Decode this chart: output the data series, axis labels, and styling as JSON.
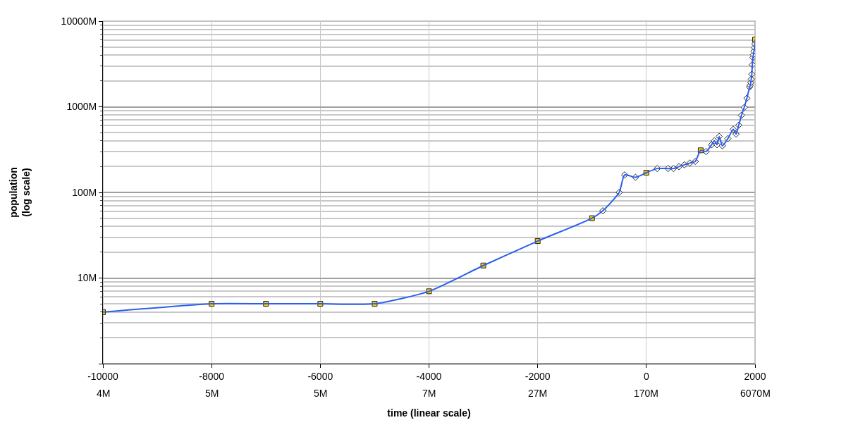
{
  "chart_data": {
    "type": "line",
    "xlabel": "time (linear scale)",
    "ylabel": "population\n(log scale)",
    "log": "y",
    "grid": true,
    "xlim": [
      -10000,
      2000
    ],
    "xticks": [
      -10000,
      -8000,
      -6000,
      -4000,
      -2000,
      0,
      2000
    ],
    "annotations": [
      "4M",
      "5M",
      "5M",
      "7M",
      "27M",
      "170M",
      "6070M"
    ],
    "ylim": [
      1,
      10000
    ],
    "yticks": [
      {
        "value": 1,
        "label": null
      },
      {
        "value": 10,
        "label": "10M"
      },
      {
        "value": 100,
        "label": "100M"
      },
      {
        "value": 1000,
        "label": "1000M"
      },
      {
        "value": 10000,
        "label": "10000M"
      }
    ],
    "series": [
      {
        "color": "#2a5ef0",
        "marker": "none",
        "line_style": "solid",
        "x": [
          -10000,
          -8000,
          -7000,
          -6000,
          -5000,
          -4000,
          -3000,
          -2000,
          -1000,
          -800,
          -500,
          -400,
          -200,
          0,
          200,
          400,
          500,
          600,
          700,
          800,
          900,
          1000,
          1100,
          1200,
          1250,
          1300,
          1340,
          1400,
          1500,
          1600,
          1650,
          1700,
          1750,
          1800,
          1850,
          1900,
          1910,
          1920,
          1930,
          1940,
          1950,
          1960,
          1970,
          1980,
          1990,
          1995,
          2000
        ],
        "values": [
          4,
          5,
          5,
          5,
          5,
          7,
          14,
          27,
          50,
          61,
          100,
          160,
          150,
          170,
          190,
          190,
          190,
          200,
          210,
          220,
          230,
          310,
          300,
          360,
          400,
          360,
          450,
          350,
          425,
          545,
          480,
          610,
          795,
          980,
          1260,
          1700,
          1780,
          1910,
          2100,
          2400,
          3100,
          3750,
          4050,
          4460,
          4900,
          5400,
          6070
        ]
      },
      {
        "type": "scatter",
        "color": "#ffcc00",
        "marker": "square",
        "x": [
          -10000,
          -8000,
          -7000,
          -6000,
          -5000,
          -4000,
          -3000,
          -2000,
          -1000,
          0,
          1000,
          2000
        ],
        "values": [
          4,
          5,
          5,
          5,
          5,
          7,
          14,
          27,
          50,
          170,
          310,
          6070
        ]
      },
      {
        "type": "scatter",
        "color": "#ffffff",
        "marker": "diamond",
        "x": [
          -800,
          -500,
          -400,
          -200,
          200,
          400,
          500,
          600,
          700,
          800,
          900,
          1100,
          1200,
          1250,
          1300,
          1340,
          1400,
          1500,
          1600,
          1650,
          1700,
          1750,
          1800,
          1850,
          1900,
          1910,
          1920,
          1930,
          1940,
          1950,
          1960,
          1970,
          1980,
          1990,
          1995
        ],
        "values": [
          61,
          100,
          160,
          150,
          190,
          190,
          190,
          200,
          210,
          220,
          230,
          300,
          360,
          400,
          360,
          450,
          350,
          425,
          545,
          480,
          610,
          795,
          980,
          1260,
          1700,
          1780,
          1910,
          2100,
          2400,
          3100,
          3750,
          4050,
          4460,
          4900,
          5400
        ]
      }
    ]
  }
}
